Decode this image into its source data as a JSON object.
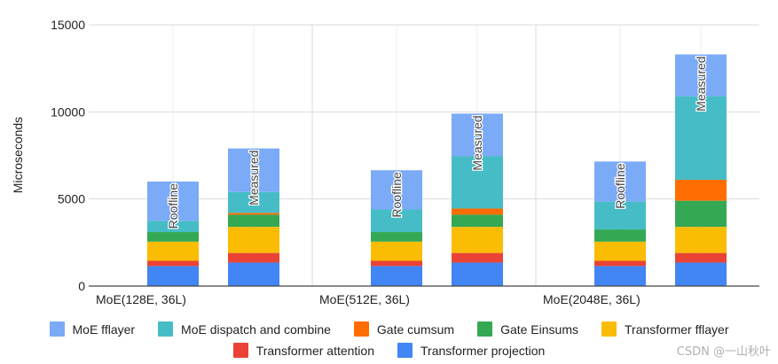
{
  "chart_data": {
    "type": "bar",
    "stacked": true,
    "ylabel": "Microseconds",
    "xlabel": "",
    "ylim": [
      0,
      15000
    ],
    "yticks": [
      0,
      5000,
      10000,
      15000
    ],
    "grid": true,
    "legend_position": "bottom",
    "groups": [
      "MoE(128E, 36L)",
      "MoE(512E, 36L)",
      "MoE(2048E, 36L)"
    ],
    "bar_labels": [
      "Roofline",
      "Measured"
    ],
    "series": [
      {
        "name": "Transformer projection",
        "color": "#4285f4",
        "values": [
          [
            1150,
            1350
          ],
          [
            1150,
            1350
          ],
          [
            1150,
            1350
          ]
        ]
      },
      {
        "name": "Transformer attention",
        "color": "#ea4335",
        "values": [
          [
            300,
            550
          ],
          [
            300,
            550
          ],
          [
            300,
            550
          ]
        ]
      },
      {
        "name": "Transformer fflayer",
        "color": "#fbbc04",
        "values": [
          [
            1100,
            1500
          ],
          [
            1100,
            1500
          ],
          [
            1100,
            1500
          ]
        ]
      },
      {
        "name": "Gate Einsums",
        "color": "#34a853",
        "values": [
          [
            550,
            700
          ],
          [
            550,
            700
          ],
          [
            700,
            1500
          ]
        ]
      },
      {
        "name": "Gate cumsum",
        "color": "#ff6d01",
        "values": [
          [
            0,
            100
          ],
          [
            0,
            350
          ],
          [
            0,
            1200
          ]
        ]
      },
      {
        "name": "MoE dispatch and combine",
        "color": "#46bdc6",
        "values": [
          [
            650,
            1200
          ],
          [
            1300,
            3000
          ],
          [
            1600,
            4800
          ]
        ]
      },
      {
        "name": "MoE fflayer",
        "color": "#7baaf7",
        "values": [
          [
            2250,
            2500
          ],
          [
            2250,
            2450
          ],
          [
            2300,
            2400
          ]
        ]
      }
    ]
  },
  "legend": {
    "row1": [
      "MoE fflayer",
      "MoE dispatch and combine",
      "Gate cumsum",
      "Gate Einsums",
      "Transformer fflayer"
    ],
    "row2": [
      "Transformer attention",
      "Transformer projection"
    ]
  },
  "watermark": "CSDN @一山秋叶"
}
